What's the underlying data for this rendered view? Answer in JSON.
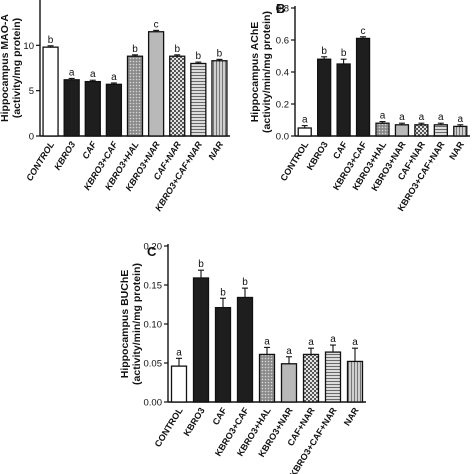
{
  "chart_data": [
    {
      "type": "bar",
      "panel_label": "",
      "ylabel_lines": [
        "Hippocampus MAO-A",
        "(activity/mg protein)"
      ],
      "categories": [
        "CONTROL",
        "KBRO3",
        "CAF",
        "KBRO3+CAF",
        "KBRO3+HAL",
        "KBRO3+NAR",
        "CAF+NAR",
        "KBRO3+CAF+NAR",
        "NAR"
      ],
      "values": [
        9.8,
        6.2,
        6.0,
        5.7,
        8.8,
        11.5,
        8.8,
        8.0,
        8.3
      ],
      "errors": [
        0.15,
        0.15,
        0.15,
        0.15,
        0.15,
        0.15,
        0.15,
        0.15,
        0.15
      ],
      "significance": [
        "b",
        "a",
        "a",
        "a",
        "b",
        "c",
        "b",
        "b",
        "b"
      ],
      "ylim": [
        0,
        15
      ],
      "yticks": [
        "0",
        "5",
        "10"
      ],
      "italic_xlabels": true
    },
    {
      "type": "bar",
      "panel_label": "B",
      "ylabel_lines": [
        "Hippocampus AChE",
        "(activity/min/mg protein)"
      ],
      "categories": [
        "CONTROL",
        "KBRO3",
        "CAF",
        "KBRO3+CAF",
        "KBRO3+HAL",
        "KBRO3+NAR",
        "CAF+NAR",
        "KBRO3+CAF+NAR",
        "NAR"
      ],
      "values": [
        0.05,
        0.48,
        0.45,
        0.61,
        0.08,
        0.07,
        0.07,
        0.07,
        0.06
      ],
      "errors": [
        0.015,
        0.015,
        0.03,
        0.01,
        0.01,
        0.01,
        0.01,
        0.01,
        0.01
      ],
      "significance": [
        "a",
        "b",
        "b",
        "c",
        "a",
        "a",
        "a",
        "a",
        "a"
      ],
      "ylim": [
        0,
        0.8
      ],
      "yticks": [
        "0.0",
        "0.2",
        "0.4",
        "0.6",
        "0.8"
      ],
      "italic_xlabels": false
    },
    {
      "type": "bar",
      "panel_label": "C",
      "ylabel_lines": [
        "Hippocampus BUChE",
        "(activity/min/mg protein)"
      ],
      "categories": [
        "CONTROL",
        "KBRO3",
        "CAF",
        "KBRO3+CAF",
        "KBRO3+HAL",
        "KBRO3+NAR",
        "CAF+NAR",
        "KBRO3+CAF+NAR",
        "NAR"
      ],
      "values": [
        0.046,
        0.159,
        0.121,
        0.134,
        0.061,
        0.049,
        0.061,
        0.064,
        0.052
      ],
      "errors": [
        0.01,
        0.01,
        0.012,
        0.012,
        0.009,
        0.009,
        0.008,
        0.009,
        0.017
      ],
      "significance": [
        "a",
        "b",
        "b",
        "b",
        "a",
        "a",
        "a",
        "a",
        "a"
      ],
      "ylim": [
        0,
        0.2
      ],
      "yticks": [
        "0.00",
        "0.05",
        "0.10",
        "0.15",
        "0.20"
      ],
      "italic_xlabels": false
    }
  ]
}
